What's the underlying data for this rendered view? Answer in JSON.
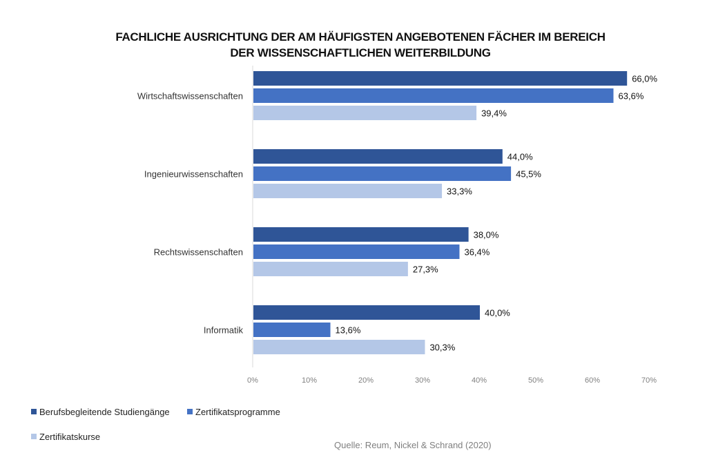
{
  "chart_data": {
    "type": "bar",
    "orientation": "horizontal",
    "title": "FACHLICHE AUSRICHTUNG DER  AM HÄUFIGSTEN ANGEBOTENEN FÄCHER IM BEREICH DER WISSENSCHAFTLICHEN WEITERBILDUNG",
    "title_lines": [
      "FACHLICHE AUSRICHTUNG DER  AM HÄUFIGSTEN ANGEBOTENEN FÄCHER IM BEREICH",
      "DER WISSENSCHAFTLICHEN WEITERBILDUNG"
    ],
    "categories": [
      "Wirtschaftswissenschaften",
      "Ingenieurwissenschaften",
      "Rechtswissenschaften",
      "Informatik"
    ],
    "series": [
      {
        "name": "Berufsbegleitende Studiengänge",
        "color": "#2F5597",
        "values": [
          66.0,
          44.0,
          38.0,
          40.0
        ],
        "labels": [
          "66,0%",
          "44,0%",
          "38,0%",
          "40,0%"
        ]
      },
      {
        "name": "Zertifikatsprogramme",
        "color": "#4472C4",
        "values": [
          63.6,
          45.5,
          36.4,
          13.6
        ],
        "labels": [
          "63,6%",
          "45,5%",
          "36,4%",
          "13,6%"
        ]
      },
      {
        "name": "Zertifikatskurse",
        "color": "#B4C7E7",
        "values": [
          39.4,
          33.3,
          27.3,
          30.3
        ],
        "labels": [
          "39,4%",
          "33,3%",
          "27,3%",
          "30,3%"
        ]
      }
    ],
    "xlabel": "",
    "ylabel": "",
    "xlim": [
      0,
      70
    ],
    "xticks": [
      0,
      10,
      20,
      30,
      40,
      50,
      60,
      70
    ],
    "xtick_labels": [
      "0%",
      "10%",
      "20%",
      "30%",
      "40%",
      "50%",
      "60%",
      "70%"
    ],
    "grid": false,
    "legend_position": "bottom-left",
    "source": "Quelle: Reum, Nickel & Schrand (2020)"
  }
}
